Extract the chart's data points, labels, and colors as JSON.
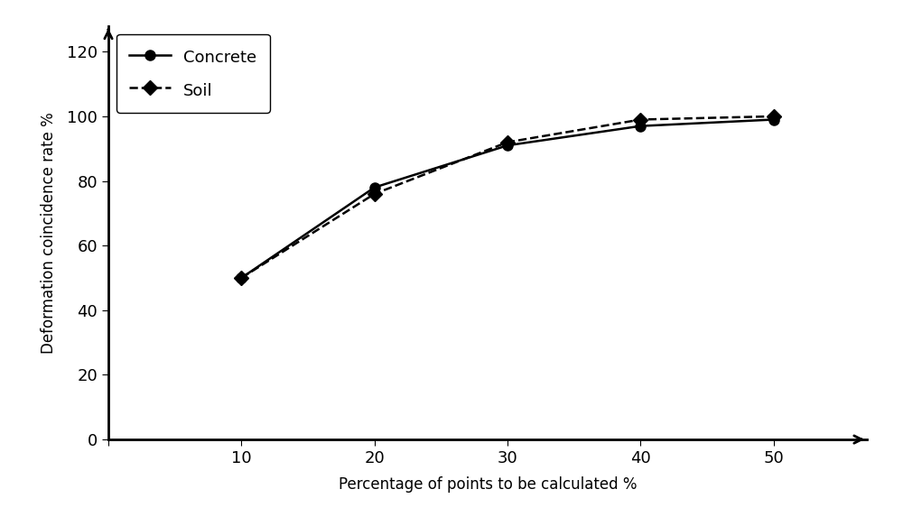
{
  "x": [
    10,
    20,
    30,
    40,
    50
  ],
  "concrete_y": [
    50,
    78,
    91,
    97,
    99
  ],
  "soil_y": [
    50,
    76,
    92,
    99,
    100
  ],
  "xlabel": "Percentage of points to be calculated %",
  "ylabel": "Deformation coincidence rate %",
  "xlim": [
    0,
    57
  ],
  "ylim": [
    0,
    128
  ],
  "xticks": [
    0,
    10,
    20,
    30,
    40,
    50
  ],
  "yticks": [
    0,
    20,
    40,
    60,
    80,
    100,
    120
  ],
  "line_color": "#000000",
  "legend_labels": [
    "Concrete",
    "Soil"
  ],
  "xlabel_fontsize": 12,
  "ylabel_fontsize": 12,
  "tick_fontsize": 13,
  "legend_fontsize": 13,
  "bg_color": "#ffffff",
  "spine_linewidth": 2.0,
  "line_linewidth": 1.8,
  "marker_size": 8
}
